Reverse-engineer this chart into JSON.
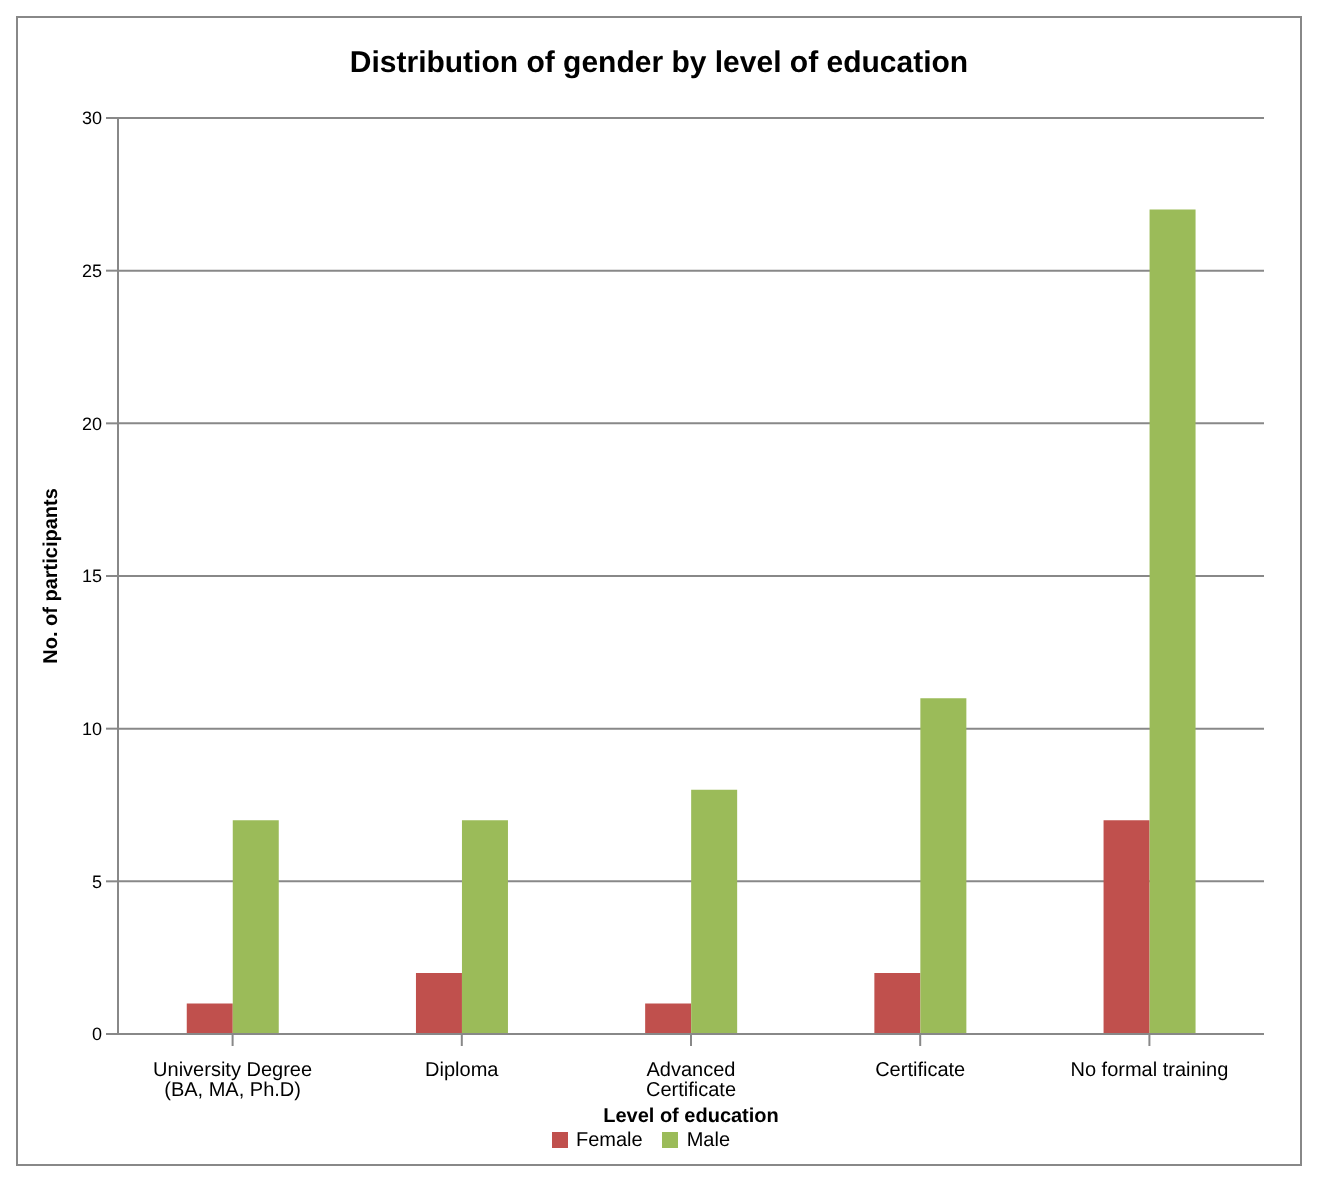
{
  "chart_data": {
    "type": "bar",
    "title": "Distribution of gender by level of education",
    "xlabel": "Level of education",
    "ylabel": "No. of participants",
    "categories": [
      "University Degree (BA, MA, Ph.D)",
      "Diploma",
      "Advanced Certificate",
      "Certificate",
      "No formal training"
    ],
    "series": [
      {
        "name": "Female",
        "color": "#c0504d",
        "values": [
          1,
          2,
          1,
          2,
          7
        ]
      },
      {
        "name": "Male",
        "color": "#9bbb59",
        "values": [
          7,
          7,
          8,
          11,
          27
        ]
      }
    ],
    "ylim": [
      0,
      30
    ],
    "yticks": [
      0,
      5,
      10,
      15,
      20,
      25,
      30
    ],
    "grid": "y",
    "legend": "bottom"
  }
}
